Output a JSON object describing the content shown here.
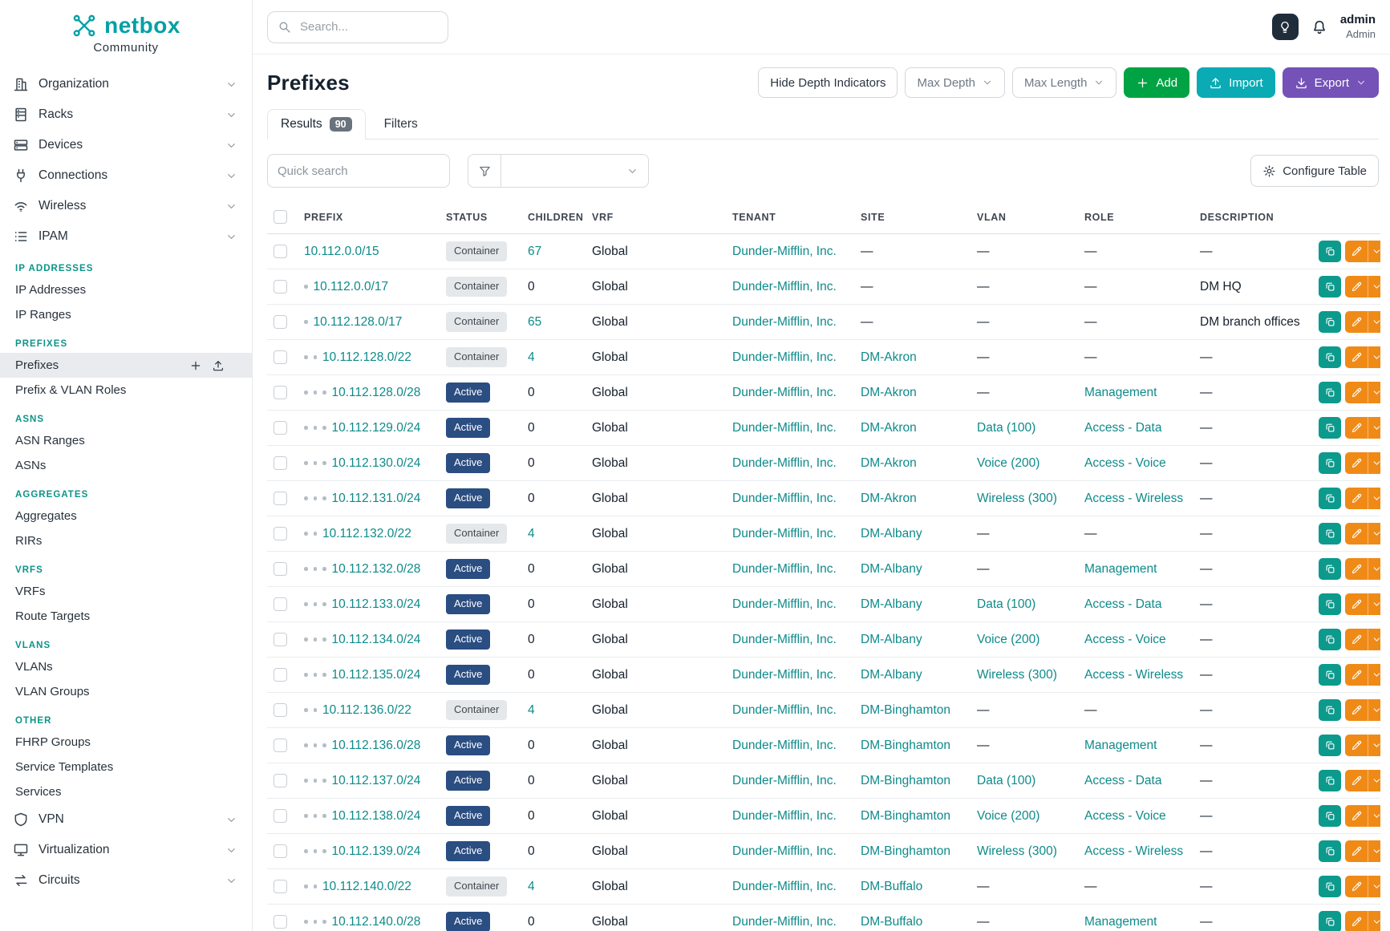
{
  "brand": {
    "name": "netbox",
    "subtitle": "Community"
  },
  "topbar": {
    "search_placeholder": "Search...",
    "user_name": "admin",
    "user_role": "Admin"
  },
  "sidebar": {
    "nav": [
      {
        "type": "item",
        "icon": "building",
        "label": "Organization"
      },
      {
        "type": "item",
        "icon": "rack",
        "label": "Racks"
      },
      {
        "type": "item",
        "icon": "server",
        "label": "Devices"
      },
      {
        "type": "item",
        "icon": "plug",
        "label": "Connections"
      },
      {
        "type": "item",
        "icon": "wifi",
        "label": "Wireless"
      },
      {
        "type": "item",
        "icon": "list",
        "label": "IPAM"
      },
      {
        "type": "section",
        "label": "IP ADDRESSES"
      },
      {
        "type": "subitem",
        "label": "IP Addresses"
      },
      {
        "type": "subitem",
        "label": "IP Ranges"
      },
      {
        "type": "section",
        "label": "PREFIXES"
      },
      {
        "type": "subitem",
        "label": "Prefixes",
        "active": true,
        "actions": true
      },
      {
        "type": "subitem",
        "label": "Prefix & VLAN Roles"
      },
      {
        "type": "section",
        "label": "ASNS"
      },
      {
        "type": "subitem",
        "label": "ASN Ranges"
      },
      {
        "type": "subitem",
        "label": "ASNs"
      },
      {
        "type": "section",
        "label": "AGGREGATES"
      },
      {
        "type": "subitem",
        "label": "Aggregates"
      },
      {
        "type": "subitem",
        "label": "RIRs"
      },
      {
        "type": "section",
        "label": "VRFS"
      },
      {
        "type": "subitem",
        "label": "VRFs"
      },
      {
        "type": "subitem",
        "label": "Route Targets"
      },
      {
        "type": "section",
        "label": "VLANS"
      },
      {
        "type": "subitem",
        "label": "VLANs"
      },
      {
        "type": "subitem",
        "label": "VLAN Groups"
      },
      {
        "type": "section",
        "label": "OTHER"
      },
      {
        "type": "subitem",
        "label": "FHRP Groups"
      },
      {
        "type": "subitem",
        "label": "Service Templates"
      },
      {
        "type": "subitem",
        "label": "Services"
      },
      {
        "type": "item",
        "icon": "shield",
        "label": "VPN"
      },
      {
        "type": "item",
        "icon": "monitor",
        "label": "Virtualization"
      },
      {
        "type": "item",
        "icon": "transfer",
        "label": "Circuits"
      }
    ]
  },
  "page": {
    "title": "Prefixes",
    "actions": {
      "hide_depth": "Hide Depth Indicators",
      "max_depth": "Max Depth",
      "max_length": "Max Length",
      "add": "Add",
      "import": "Import",
      "export": "Export"
    },
    "tabs": [
      {
        "label": "Results",
        "badge": "90"
      },
      {
        "label": "Filters"
      }
    ],
    "controls": {
      "quick_search_placeholder": "Quick search",
      "filter_select_value": "",
      "configure_table": "Configure Table"
    }
  },
  "table": {
    "columns": [
      "PREFIX",
      "STATUS",
      "CHILDREN",
      "VRF",
      "TENANT",
      "SITE",
      "VLAN",
      "ROLE",
      "DESCRIPTION"
    ],
    "rows": [
      {
        "depth": 0,
        "prefix": "10.112.0.0/15",
        "status": "Container",
        "children": "67",
        "vrf": "Global",
        "tenant": "Dunder-Mifflin, Inc.",
        "site": "—",
        "vlan": "—",
        "role": "—",
        "description": "—"
      },
      {
        "depth": 1,
        "prefix": "10.112.0.0/17",
        "status": "Container",
        "children": "0",
        "vrf": "Global",
        "tenant": "Dunder-Mifflin, Inc.",
        "site": "—",
        "vlan": "—",
        "role": "—",
        "description": "DM HQ"
      },
      {
        "depth": 1,
        "prefix": "10.112.128.0/17",
        "status": "Container",
        "children": "65",
        "vrf": "Global",
        "tenant": "Dunder-Mifflin, Inc.",
        "site": "—",
        "vlan": "—",
        "role": "—",
        "description": "DM branch offices"
      },
      {
        "depth": 2,
        "prefix": "10.112.128.0/22",
        "status": "Container",
        "children": "4",
        "vrf": "Global",
        "tenant": "Dunder-Mifflin, Inc.",
        "site": "DM-Akron",
        "vlan": "—",
        "role": "—",
        "description": "—"
      },
      {
        "depth": 3,
        "prefix": "10.112.128.0/28",
        "status": "Active",
        "children": "0",
        "vrf": "Global",
        "tenant": "Dunder-Mifflin, Inc.",
        "site": "DM-Akron",
        "vlan": "—",
        "role": "Management",
        "description": "—"
      },
      {
        "depth": 3,
        "prefix": "10.112.129.0/24",
        "status": "Active",
        "children": "0",
        "vrf": "Global",
        "tenant": "Dunder-Mifflin, Inc.",
        "site": "DM-Akron",
        "vlan": "Data (100)",
        "role": "Access - Data",
        "description": "—"
      },
      {
        "depth": 3,
        "prefix": "10.112.130.0/24",
        "status": "Active",
        "children": "0",
        "vrf": "Global",
        "tenant": "Dunder-Mifflin, Inc.",
        "site": "DM-Akron",
        "vlan": "Voice (200)",
        "role": "Access - Voice",
        "description": "—"
      },
      {
        "depth": 3,
        "prefix": "10.112.131.0/24",
        "status": "Active",
        "children": "0",
        "vrf": "Global",
        "tenant": "Dunder-Mifflin, Inc.",
        "site": "DM-Akron",
        "vlan": "Wireless (300)",
        "role": "Access - Wireless",
        "description": "—"
      },
      {
        "depth": 2,
        "prefix": "10.112.132.0/22",
        "status": "Container",
        "children": "4",
        "vrf": "Global",
        "tenant": "Dunder-Mifflin, Inc.",
        "site": "DM-Albany",
        "vlan": "—",
        "role": "—",
        "description": "—"
      },
      {
        "depth": 3,
        "prefix": "10.112.132.0/28",
        "status": "Active",
        "children": "0",
        "vrf": "Global",
        "tenant": "Dunder-Mifflin, Inc.",
        "site": "DM-Albany",
        "vlan": "—",
        "role": "Management",
        "description": "—"
      },
      {
        "depth": 3,
        "prefix": "10.112.133.0/24",
        "status": "Active",
        "children": "0",
        "vrf": "Global",
        "tenant": "Dunder-Mifflin, Inc.",
        "site": "DM-Albany",
        "vlan": "Data (100)",
        "role": "Access - Data",
        "description": "—"
      },
      {
        "depth": 3,
        "prefix": "10.112.134.0/24",
        "status": "Active",
        "children": "0",
        "vrf": "Global",
        "tenant": "Dunder-Mifflin, Inc.",
        "site": "DM-Albany",
        "vlan": "Voice (200)",
        "role": "Access - Voice",
        "description": "—"
      },
      {
        "depth": 3,
        "prefix": "10.112.135.0/24",
        "status": "Active",
        "children": "0",
        "vrf": "Global",
        "tenant": "Dunder-Mifflin, Inc.",
        "site": "DM-Albany",
        "vlan": "Wireless (300)",
        "role": "Access - Wireless",
        "description": "—"
      },
      {
        "depth": 2,
        "prefix": "10.112.136.0/22",
        "status": "Container",
        "children": "4",
        "vrf": "Global",
        "tenant": "Dunder-Mifflin, Inc.",
        "site": "DM-Binghamton",
        "vlan": "—",
        "role": "—",
        "description": "—"
      },
      {
        "depth": 3,
        "prefix": "10.112.136.0/28",
        "status": "Active",
        "children": "0",
        "vrf": "Global",
        "tenant": "Dunder-Mifflin, Inc.",
        "site": "DM-Binghamton",
        "vlan": "—",
        "role": "Management",
        "description": "—"
      },
      {
        "depth": 3,
        "prefix": "10.112.137.0/24",
        "status": "Active",
        "children": "0",
        "vrf": "Global",
        "tenant": "Dunder-Mifflin, Inc.",
        "site": "DM-Binghamton",
        "vlan": "Data (100)",
        "role": "Access - Data",
        "description": "—"
      },
      {
        "depth": 3,
        "prefix": "10.112.138.0/24",
        "status": "Active",
        "children": "0",
        "vrf": "Global",
        "tenant": "Dunder-Mifflin, Inc.",
        "site": "DM-Binghamton",
        "vlan": "Voice (200)",
        "role": "Access - Voice",
        "description": "—"
      },
      {
        "depth": 3,
        "prefix": "10.112.139.0/24",
        "status": "Active",
        "children": "0",
        "vrf": "Global",
        "tenant": "Dunder-Mifflin, Inc.",
        "site": "DM-Binghamton",
        "vlan": "Wireless (300)",
        "role": "Access - Wireless",
        "description": "—"
      },
      {
        "depth": 2,
        "prefix": "10.112.140.0/22",
        "status": "Container",
        "children": "4",
        "vrf": "Global",
        "tenant": "Dunder-Mifflin, Inc.",
        "site": "DM-Buffalo",
        "vlan": "—",
        "role": "—",
        "description": "—"
      },
      {
        "depth": 3,
        "prefix": "10.112.140.0/28",
        "status": "Active",
        "children": "0",
        "vrf": "Global",
        "tenant": "Dunder-Mifflin, Inc.",
        "site": "DM-Buffalo",
        "vlan": "—",
        "role": "Management",
        "description": "—"
      }
    ]
  },
  "colors": {
    "brand_teal": "#00a0a5",
    "link_teal": "#0e8a8a",
    "section_teal": "#0d9488",
    "status_active": "#2a4d82",
    "status_container_bg": "#e5e8eb",
    "status_container_text": "#41474e",
    "add_green": "#00a344",
    "import_teal": "#0aabb4",
    "export_purple": "#7452b8",
    "action_orange": "#f08a17",
    "action_teal": "#0c9a8d"
  }
}
